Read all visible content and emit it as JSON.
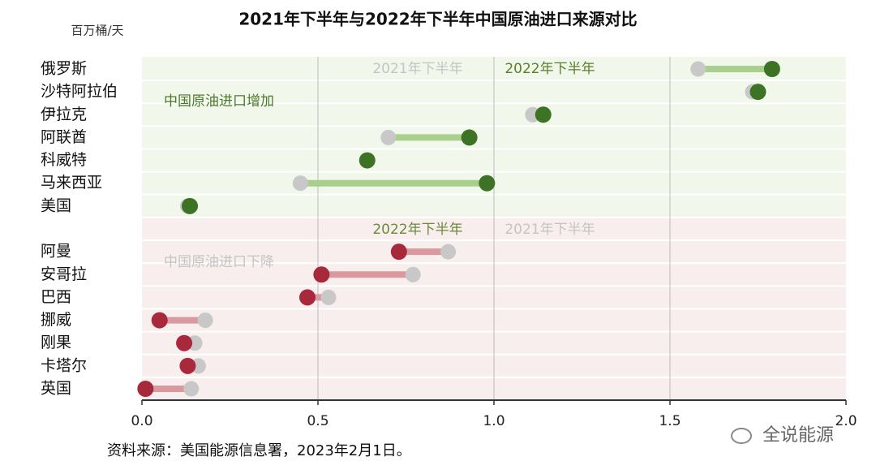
{
  "chart_data": {
    "type": "dumbbell",
    "title": "2021年下半年与2022年下半年中国原油进口来源对比",
    "y_unit": "百万桶/天",
    "source": "资料来源：美国能源信息署，2023年2月1日。",
    "watermark": "全说能源",
    "categories": [
      "俄罗斯",
      "沙特阿拉伯",
      "伊拉克",
      "阿联酋",
      "科威特",
      "马来西亚",
      "美国",
      null,
      "阿曼",
      "安哥拉",
      "巴西",
      "挪威",
      "刚果",
      "卡塔尔",
      "英国"
    ],
    "series": [
      {
        "name": "2021年下半年",
        "color": "#c8c8c8",
        "values": [
          1.58,
          1.735,
          1.11,
          0.7,
          0.64,
          0.45,
          0.13,
          null,
          0.87,
          0.77,
          0.53,
          0.18,
          0.15,
          0.16,
          0.14
        ]
      },
      {
        "name": "2022年下半年",
        "values": [
          1.79,
          1.75,
          1.14,
          0.93,
          0.64,
          0.98,
          0.136,
          null,
          0.73,
          0.51,
          0.47,
          0.05,
          0.12,
          0.13,
          0.01
        ]
      }
    ],
    "regions": [
      {
        "label": "中国原油进口增加",
        "label_color": "#4a7a2a",
        "from": "俄罗斯",
        "to": "美国",
        "background": "#f2f7ec",
        "dot_color": "#3c7325",
        "line_color": "#a8cf8c",
        "annotations": [
          {
            "text": "2021年下半年",
            "color": "#c4c4c4"
          },
          {
            "text": "2022年下半年",
            "color": "#5c7f2c"
          }
        ]
      },
      {
        "label": "中国原油进口下降",
        "label_color": "#c4c4c4",
        "from": "阿曼",
        "to": "英国",
        "background": "#f9eeee",
        "dot_color": "#a8283c",
        "line_color": "#d9999f",
        "annotations": [
          {
            "text": "2022年下半年",
            "color": "#6b8a3a"
          },
          {
            "text": "2021年下半年",
            "color": "#c4c4c4"
          }
        ]
      }
    ],
    "xlim": [
      0,
      2
    ],
    "xticks": [
      {
        "value": 0,
        "label": "0.0"
      },
      0.5,
      {
        "value": 1,
        "label": "1.0"
      },
      1.5,
      {
        "value": 2,
        "label": "2.0"
      }
    ],
    "grid": true
  }
}
